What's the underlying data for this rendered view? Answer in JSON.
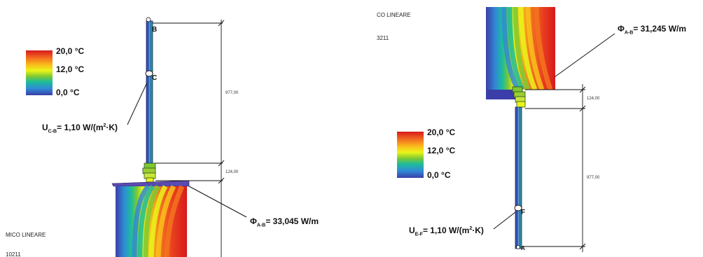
{
  "legend": {
    "max_label": "20,0 °C",
    "mid_label": "12,0 °C",
    "min_label": "0,0 °C",
    "colors": [
      "#d7191c",
      "#f4741f",
      "#f9c21b",
      "#e9f51a",
      "#7ec832",
      "#1dbd9a",
      "#2f8bd6",
      "#3b3ea8"
    ]
  },
  "left": {
    "u_label": "U",
    "u_sub": "C-B",
    "u_value": "= 1,10 W/(m",
    "u_sup": "2",
    "u_tail": "·K)",
    "phi_label": "Φ",
    "phi_sub": "A-B",
    "phi_value": "= 33,045 W/m",
    "point_b": "B",
    "point_c": "C",
    "dim_long": "977,00",
    "dim_short": "124,00",
    "corner_title": "MICO LINEARE",
    "corner_code": "10211"
  },
  "right": {
    "u_label": "U",
    "u_sub": "E-F",
    "u_value": "= 1,10 W/(m",
    "u_sup": "2",
    "u_tail": "·K)",
    "phi_label": "Φ",
    "phi_sub": "A-B",
    "phi_value": "= 31,245 W/m",
    "point_f": "F",
    "point_a": "A",
    "dim_long": "977,00",
    "dim_short": "124,00",
    "corner_title": "CO LINEARE",
    "corner_code": "3211"
  }
}
